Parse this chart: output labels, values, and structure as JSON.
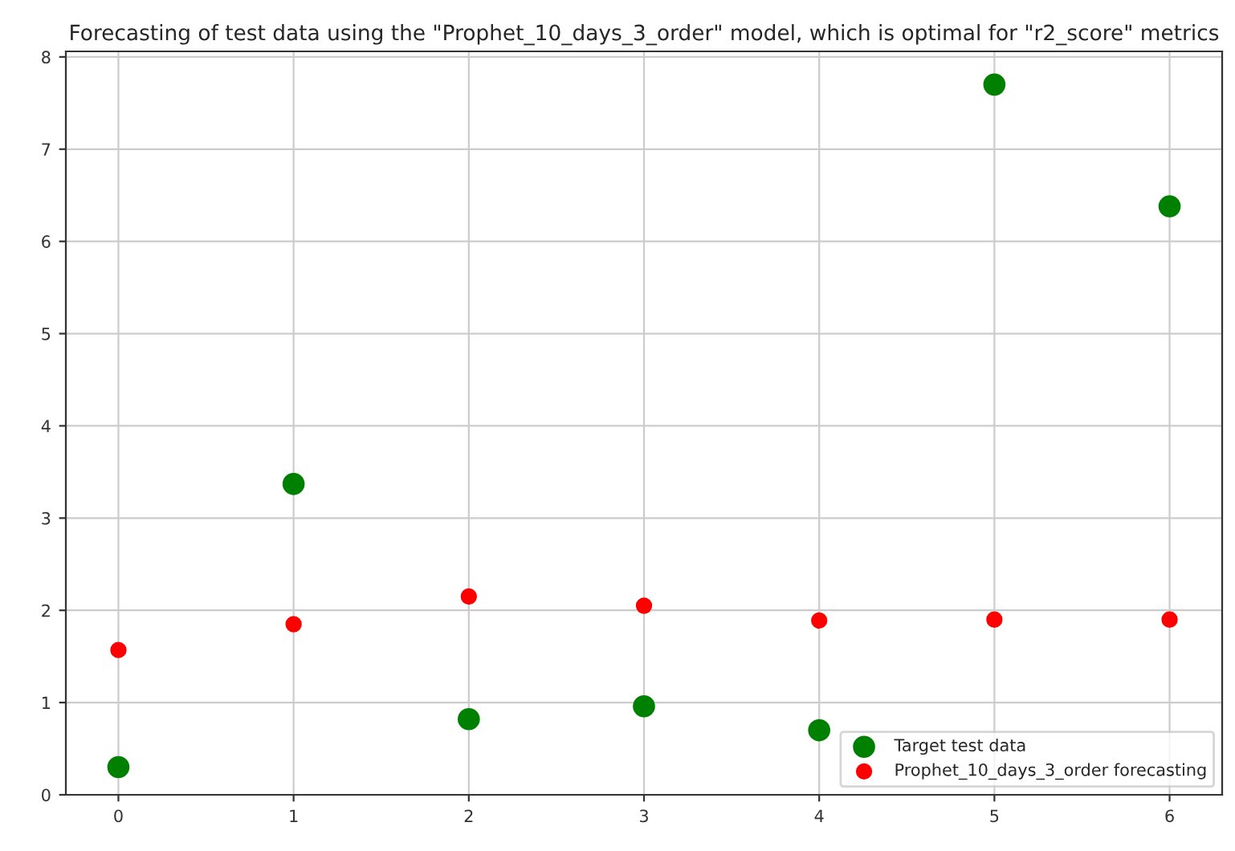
{
  "chart_data": {
    "type": "scatter",
    "title": "Forecasting of test data using the \"Prophet_10_days_3_order\" model, which is optimal for \"r2_score\" metrics",
    "x": [
      0,
      1,
      2,
      3,
      4,
      5,
      6
    ],
    "series": [
      {
        "name": "Target test data",
        "color": "#008000",
        "values": [
          0.3,
          3.37,
          0.82,
          0.96,
          0.7,
          7.7,
          6.38
        ]
      },
      {
        "name": "Prophet_10_days_3_order forecasting",
        "color": "#ff0000",
        "values": [
          1.57,
          1.85,
          2.15,
          2.05,
          1.89,
          1.9,
          1.9
        ]
      }
    ],
    "xlim": [
      -0.3,
      6.3
    ],
    "xticks": [
      0,
      1,
      2,
      3,
      4,
      5,
      6
    ],
    "ylim": [
      0,
      8.06
    ],
    "yticks": [
      0,
      1,
      2,
      3,
      4,
      5,
      6,
      7,
      8
    ],
    "grid": true,
    "legend": "bottom right",
    "marker": "circle"
  }
}
